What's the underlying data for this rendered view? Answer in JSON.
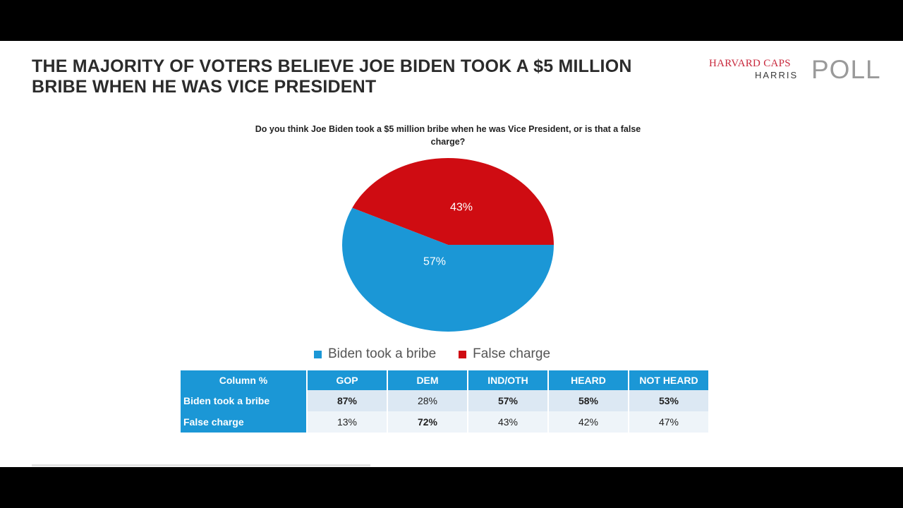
{
  "slide": {
    "title": "THE MAJORITY OF VOTERS BELIEVE JOE BIDEN TOOK A $5 MILLION BRIBE WHEN HE WAS VICE PRESIDENT",
    "logo": {
      "line1": "HARVARD CAPS",
      "line2": "HARRIS",
      "poll": "POLL"
    },
    "question": "Do you think Joe Biden took a $5 million bribe when he was Vice President, or is that a false charge?"
  },
  "colors": {
    "bribe": "#1b97d6",
    "false": "#cf0c12",
    "header": "#1b97d6"
  },
  "chart_data": {
    "type": "pie",
    "title": "Do you think Joe Biden took a $5 million bribe when he was Vice President, or is that a false charge?",
    "categories": [
      "Biden took a bribe",
      "False charge"
    ],
    "values": [
      57,
      43
    ],
    "labels": [
      "57%",
      "43%"
    ],
    "legend_position": "bottom"
  },
  "table": {
    "header_label": "Column %",
    "columns": [
      "GOP",
      "DEM",
      "IND/OTH",
      "HEARD",
      "NOT HEARD"
    ],
    "rows": [
      {
        "label": "Biden took a bribe",
        "values": [
          "87%",
          "28%",
          "57%",
          "58%",
          "53%"
        ],
        "bold": [
          true,
          false,
          true,
          true,
          true
        ]
      },
      {
        "label": "False charge",
        "values": [
          "13%",
          "72%",
          "43%",
          "42%",
          "47%"
        ],
        "bold": [
          false,
          true,
          false,
          false,
          false
        ]
      }
    ]
  }
}
